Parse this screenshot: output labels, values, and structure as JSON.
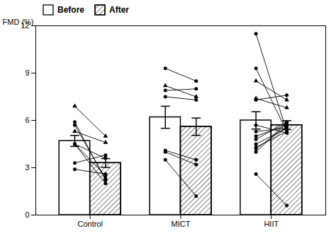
{
  "chart_data": {
    "type": "bar",
    "categories": [
      "Control",
      "MICT",
      "HIIT"
    ],
    "ylabel": "FMD (%)",
    "ylim": [
      0,
      12
    ],
    "yticks": [
      0,
      3,
      6,
      9,
      12
    ],
    "legend": "upper left",
    "series": [
      {
        "name": "Before",
        "color": "white",
        "values": [
          4.7,
          6.2,
          6.0
        ],
        "error": [
          0.35,
          0.7,
          0.55
        ]
      },
      {
        "name": "After",
        "color": "white",
        "values": [
          3.3,
          5.6,
          5.7
        ],
        "error": [
          0.28,
          0.55,
          0.28
        ]
      }
    ],
    "subjects": [
      {
        "category": "Control",
        "marker": "circle",
        "before": [
          5.9,
          5.7,
          4.5,
          4.5,
          4.5,
          3.3,
          2.9
        ],
        "after": [
          2.2,
          2.3,
          2.5,
          2.0,
          3.6,
          3.8,
          2.6
        ]
      },
      {
        "category": "Control",
        "marker": "triangle",
        "before": [
          6.9,
          5.3
        ],
        "after": [
          5.0,
          4.6
        ]
      },
      {
        "category": "MICT",
        "marker": "circle",
        "before": [
          9.3,
          7.9,
          7.5,
          4.1,
          4.0,
          3.5
        ],
        "after": [
          8.5,
          8.0,
          7.3,
          3.5,
          3.2,
          1.2
        ]
      },
      {
        "category": "MICT",
        "marker": "triangle",
        "before": [
          8.2
        ],
        "after": [
          7.5
        ]
      },
      {
        "category": "HIIT",
        "marker": "circle",
        "before": [
          9.3,
          7.3,
          5.7,
          5.3,
          5.0,
          4.8,
          4.5,
          4.3,
          4.2,
          4.0,
          2.6
        ],
        "after": [
          5.3,
          7.6,
          5.2,
          5.5,
          5.7,
          5.9,
          5.5,
          5.3,
          5.6,
          5.8,
          0.6
        ]
      },
      {
        "category": "HIIT",
        "marker": "triangle",
        "before": [
          8.5,
          7.4
        ],
        "after": [
          7.3,
          6.8
        ]
      },
      {
        "category": "HIIT",
        "marker": "circle",
        "before": [
          11.5
        ],
        "after": [
          5.3
        ]
      }
    ]
  }
}
